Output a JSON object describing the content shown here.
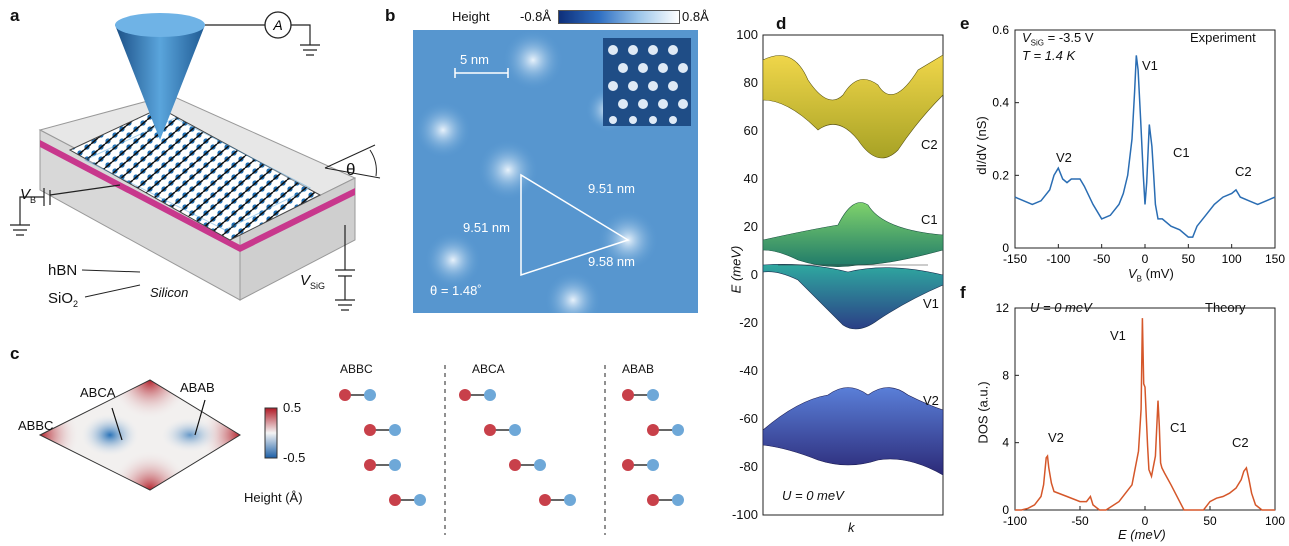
{
  "panels": {
    "a": {
      "letter": "a",
      "labels": {
        "vb": "V",
        "vb_sub": "B",
        "hbn": "hBN",
        "sio2": "SiO",
        "sio2_sub": "2",
        "silicon": "Silicon",
        "vsig": "V",
        "vsig_sub": "SiG",
        "theta": "θ",
        "ammeter": "A"
      }
    },
    "b": {
      "letter": "b",
      "height_label": "Height",
      "min": "-0.8Å",
      "max": "0.8Å",
      "scale": "5 nm",
      "d1": "9.51 nm",
      "d2": "9.51 nm",
      "d3": "9.58 nm",
      "theta": "θ = 1.48˚"
    },
    "c": {
      "letter": "c",
      "abbc": "ABBC",
      "abca": "ABCA",
      "abab": "ABAB",
      "cb_max": "0.5",
      "cb_min": "-0.5",
      "cb_title": "Height (Å)",
      "stack_titles": [
        "ABBC",
        "ABCA",
        "ABAB"
      ]
    },
    "d": {
      "letter": "d",
      "ylabel": "E (meV)",
      "xlabel": "k",
      "yticks": [
        "100",
        "80",
        "60",
        "40",
        "20",
        "0",
        "-20",
        "-40",
        "-60",
        "-80",
        "-100"
      ],
      "bands": [
        "C2",
        "C1",
        "V1",
        "V2"
      ],
      "note": "U = 0 meV"
    },
    "e": {
      "letter": "e",
      "vsig": "V",
      "vsig_sub": "SiG",
      "vsig_val": " = -3.5 V",
      "temp": "T = 1.4 K",
      "title": "Experiment",
      "ylabel": "dI/dV (nS)",
      "xlabel": "V",
      "xlabel_sub": "B",
      "xlabel_unit": " (mV)",
      "peaks": [
        "V1",
        "V2",
        "C1",
        "C2"
      ],
      "yticks": [
        "0.6",
        "0.4",
        "0.2",
        "0"
      ],
      "xticks": [
        "-150",
        "-100",
        "-50",
        "0",
        "50",
        "100",
        "150"
      ]
    },
    "f": {
      "letter": "f",
      "note": "U = 0 meV",
      "title": "Theory",
      "ylabel": "DOS (a.u.)",
      "xlabel": "E (meV)",
      "peaks": [
        "V1",
        "V2",
        "C1",
        "C2"
      ],
      "yticks": [
        "12",
        "8",
        "4",
        "0"
      ],
      "xticks": [
        "-100",
        "-50",
        "0",
        "50",
        "100"
      ]
    }
  },
  "chart_data": [
    {
      "type": "line",
      "title": "Experiment",
      "xlabel": "V_B (mV)",
      "ylabel": "dI/dV (nS)",
      "xlim": [
        -150,
        150
      ],
      "ylim": [
        0,
        0.6
      ],
      "x": [
        -150,
        -140,
        -130,
        -120,
        -110,
        -105,
        -100,
        -95,
        -90,
        -85,
        -80,
        -75,
        -70,
        -60,
        -50,
        -40,
        -30,
        -25,
        -20,
        -15,
        -12,
        -10,
        -8,
        -5,
        -2,
        0,
        2,
        5,
        8,
        10,
        12,
        15,
        20,
        30,
        40,
        50,
        55,
        60,
        70,
        80,
        90,
        100,
        105,
        110,
        120,
        130,
        140,
        150
      ],
      "series": [
        {
          "values": [
            0.14,
            0.13,
            0.12,
            0.13,
            0.16,
            0.2,
            0.22,
            0.19,
            0.18,
            0.19,
            0.19,
            0.19,
            0.17,
            0.12,
            0.08,
            0.09,
            0.12,
            0.15,
            0.2,
            0.3,
            0.43,
            0.53,
            0.49,
            0.35,
            0.2,
            0.12,
            0.18,
            0.34,
            0.28,
            0.2,
            0.12,
            0.08,
            0.08,
            0.06,
            0.05,
            0.03,
            0.03,
            0.06,
            0.09,
            0.12,
            0.14,
            0.15,
            0.16,
            0.14,
            0.13,
            0.12,
            0.13,
            0.14
          ]
        }
      ]
    },
    {
      "type": "line",
      "title": "Theory",
      "xlabel": "E (meV)",
      "ylabel": "DOS (a.u.)",
      "xlim": [
        -100,
        100
      ],
      "ylim": [
        0,
        12
      ],
      "x": [
        -100,
        -95,
        -90,
        -85,
        -80,
        -78,
        -76,
        -75,
        -74,
        -72,
        -70,
        -60,
        -50,
        -45,
        -42,
        -40,
        -35,
        -30,
        -20,
        -10,
        -5,
        -3,
        -2,
        -1,
        0,
        1,
        2,
        3,
        5,
        8,
        10,
        11,
        12,
        13,
        15,
        20,
        30,
        40,
        45,
        50,
        55,
        60,
        65,
        70,
        74,
        76,
        78,
        80,
        82,
        85,
        90,
        95,
        100
      ],
      "series": [
        {
          "values": [
            0,
            0,
            0.1,
            0.3,
            0.8,
            1.5,
            3.1,
            3.2,
            2.5,
            1.6,
            1.1,
            0.8,
            0.5,
            0.5,
            0.8,
            0.3,
            0,
            0,
            0.5,
            1.5,
            3.5,
            6,
            11.4,
            7.5,
            7.3,
            5.5,
            3.8,
            2.4,
            2.0,
            3.2,
            6.5,
            5.0,
            2.8,
            2.5,
            2.2,
            1.5,
            0,
            0,
            0,
            0.5,
            0.7,
            0.8,
            1.0,
            1.3,
            1.8,
            2.3,
            2.5,
            1.8,
            1.0,
            0.3,
            0,
            0,
            0
          ]
        }
      ]
    },
    {
      "type": "line",
      "title": "",
      "xlabel": "k",
      "ylabel": "E (meV)",
      "ylim": [
        -100,
        100
      ],
      "series": [
        {
          "name": "C2",
          "values": []
        },
        {
          "name": "C1",
          "values": []
        },
        {
          "name": "V1",
          "values": []
        },
        {
          "name": "V2",
          "values": []
        }
      ]
    }
  ]
}
